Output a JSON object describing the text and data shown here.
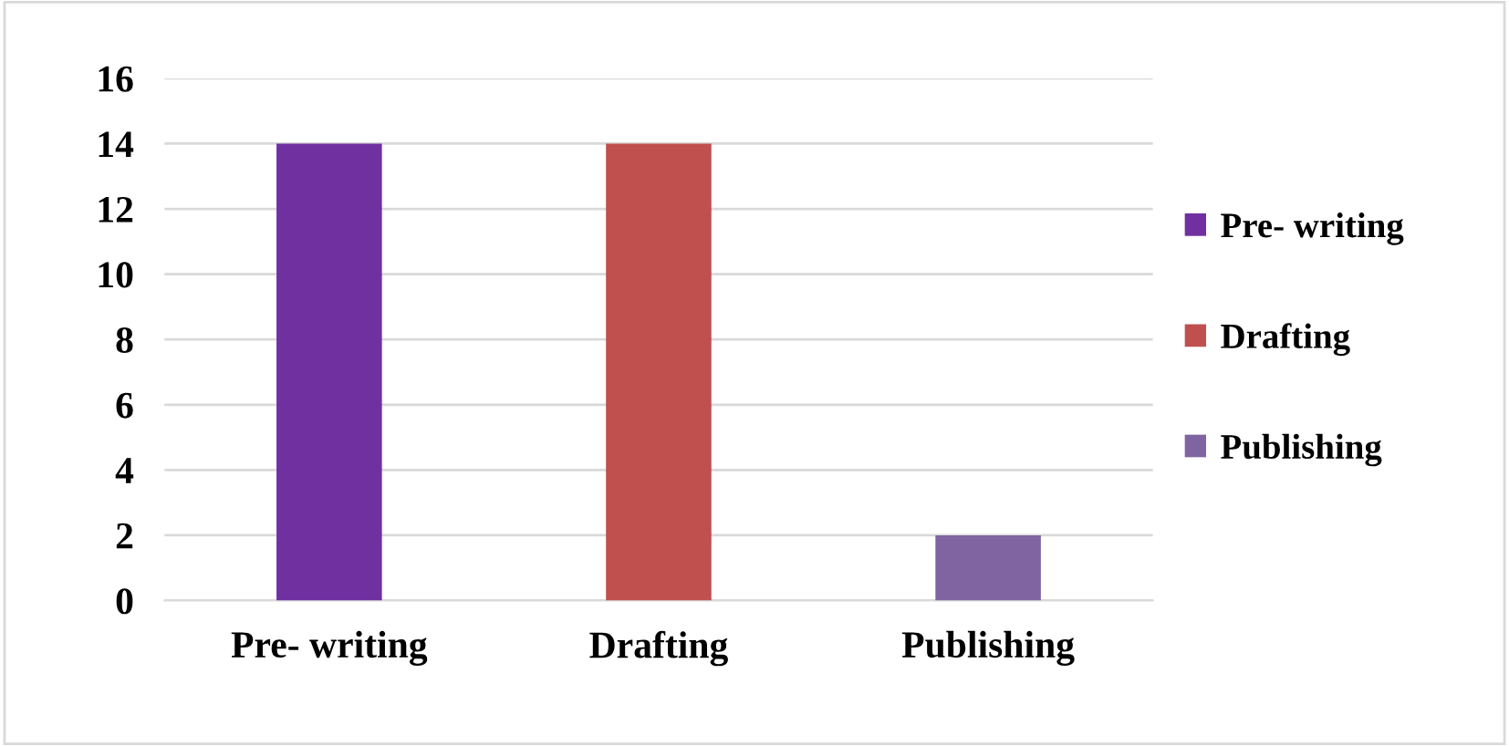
{
  "chart_data": {
    "type": "bar",
    "categories": [
      "Pre- writing",
      "Drafting",
      "Publishing"
    ],
    "series": [
      {
        "name": "Pre- writing",
        "color": "#7030a0",
        "values": [
          14,
          null,
          null
        ]
      },
      {
        "name": "Drafting",
        "color": "#c0504d",
        "values": [
          null,
          14,
          null
        ]
      },
      {
        "name": "Publishing",
        "color": "#8064a2",
        "values": [
          null,
          null,
          2
        ]
      }
    ],
    "ylim": [
      0,
      16
    ],
    "yticks": [
      0,
      2,
      4,
      6,
      8,
      10,
      12,
      14,
      16
    ],
    "grid": "y",
    "legend": "right"
  }
}
